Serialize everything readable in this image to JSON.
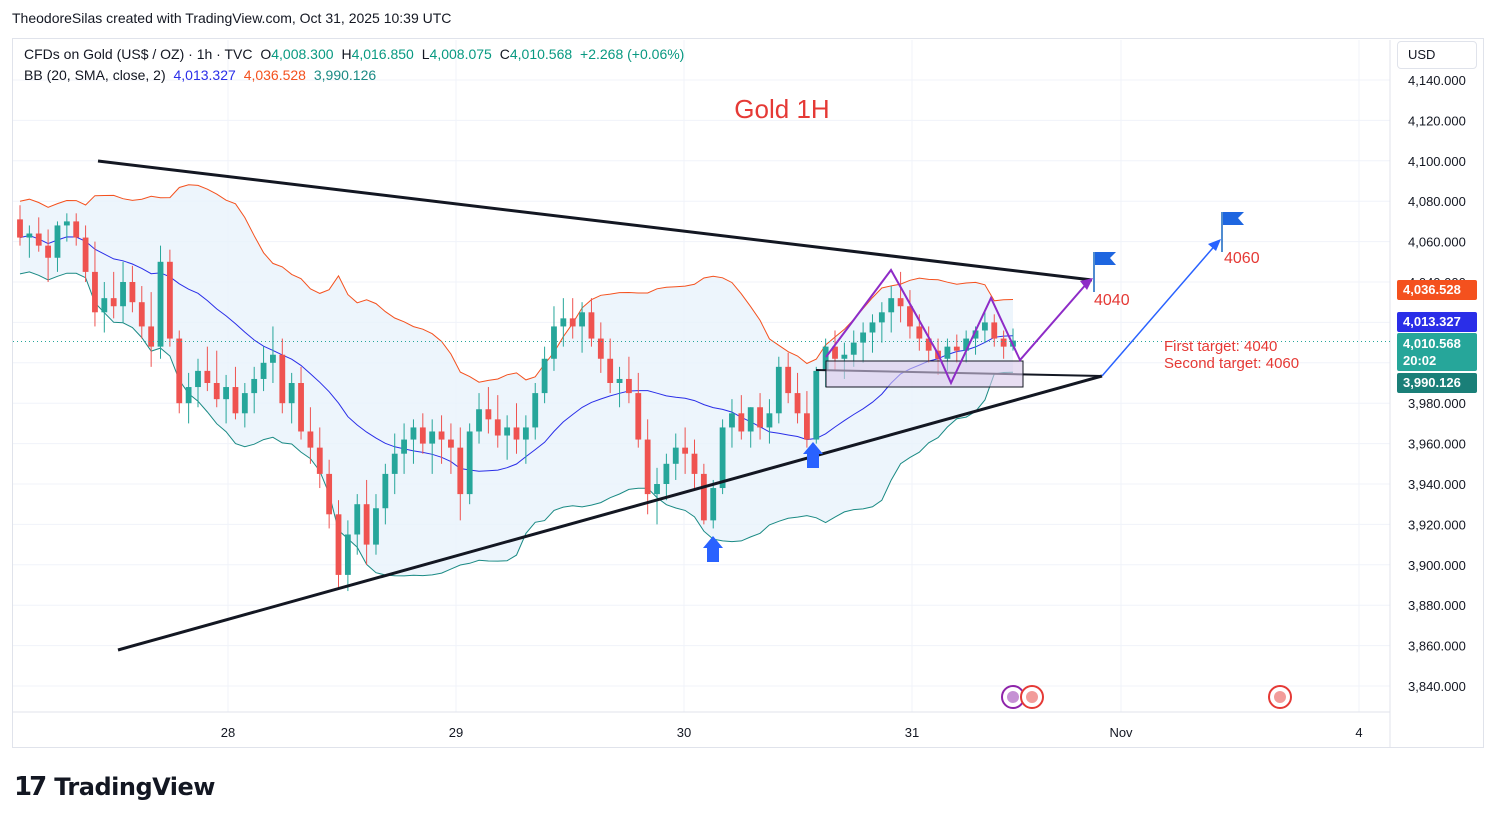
{
  "header": {
    "creator": "TheodoreSilas created with TradingView.com, Oct 31, 2025 10:39 UTC"
  },
  "symbol_line": {
    "name": "CFDs on Gold (US$ / OZ) · 1h · TVC",
    "o_label": "O",
    "o_value": "4,008.300",
    "h_label": "H",
    "h_value": "4,016.850",
    "l_label": "L",
    "l_value": "4,008.075",
    "c_label": "C",
    "c_value": "4,010.568",
    "change": "+2.268 (+0.06%)"
  },
  "bb_line": {
    "name": "BB (20, SMA, close, 2)",
    "basis": "4,013.327",
    "upper": "4,036.528",
    "lower": "3,990.126"
  },
  "currency_button": "USD",
  "branding": {
    "footer": "TradingView"
  },
  "price_tags": {
    "upper": "4,036.528",
    "basis": "4,013.327",
    "last_price": "4,010.568",
    "countdown": "20:02",
    "lower": "3,990.126"
  },
  "colors": {
    "up": "#26a69a",
    "down": "#ef5350",
    "bb_basis": "#2a2ee8",
    "bb_upper": "#f4511e",
    "bb_lower": "#1a8a84",
    "bb_fill": "#e8f2fb",
    "title": "#e53935",
    "annotation_red": "#e53935",
    "purple": "#8e2cc7",
    "blue_arrow": "#2962ff",
    "last_price_bg": "#26a69a"
  },
  "chart_data": {
    "type": "candlestick",
    "title": "Gold 1H",
    "timeframe": "1h",
    "ylim": [
      3830,
      4150
    ],
    "y_ticks": [
      3840,
      3860,
      3880,
      3900,
      3920,
      3940,
      3960,
      3980,
      4000,
      4020,
      4040,
      4060,
      4080,
      4100,
      4120,
      4140
    ],
    "y_tick_labels": [
      "3,840.000",
      "3,860.000",
      "3,880.000",
      "3,900.000",
      "3,920.000",
      "3,940.000",
      "3,960.000",
      "3,980.000",
      "4,000.000",
      "4,020.000",
      "4,040.000",
      "4,060.000",
      "4,080.000",
      "4,100.000",
      "4,120.000",
      "4,140.000"
    ],
    "x_tick_labels": [
      "28",
      "29",
      "30",
      "31",
      "Nov",
      "4"
    ],
    "annotations": {
      "target_1_label": "4040",
      "target_2_label": "4060",
      "targets_text_1": "First target: 4040",
      "targets_text_2": "Second target: 4060"
    },
    "bars_ohlc": [
      [
        4071,
        4078,
        4058,
        4062
      ],
      [
        4062,
        4068,
        4052,
        4064
      ],
      [
        4064,
        4072,
        4055,
        4058
      ],
      [
        4058,
        4066,
        4040,
        4052
      ],
      [
        4052,
        4070,
        4045,
        4068
      ],
      [
        4068,
        4074,
        4060,
        4070
      ],
      [
        4070,
        4074,
        4058,
        4062
      ],
      [
        4062,
        4068,
        4040,
        4045
      ],
      [
        4045,
        4060,
        4018,
        4025
      ],
      [
        4025,
        4040,
        4015,
        4032
      ],
      [
        4032,
        4045,
        4022,
        4028
      ],
      [
        4028,
        4050,
        4020,
        4040
      ],
      [
        4040,
        4048,
        4025,
        4030
      ],
      [
        4030,
        4038,
        4012,
        4018
      ],
      [
        4018,
        4035,
        3998,
        4008
      ],
      [
        4008,
        4058,
        4002,
        4050
      ],
      [
        4050,
        4056,
        4008,
        4012
      ],
      [
        4012,
        4016,
        3975,
        3980
      ],
      [
        3980,
        3995,
        3970,
        3988
      ],
      [
        3988,
        4002,
        3978,
        3996
      ],
      [
        3996,
        4008,
        3986,
        3990
      ],
      [
        3990,
        4006,
        3978,
        3982
      ],
      [
        3982,
        3994,
        3970,
        3988
      ],
      [
        3988,
        3998,
        3972,
        3975
      ],
      [
        3975,
        3990,
        3968,
        3985
      ],
      [
        3985,
        3998,
        3975,
        3992
      ],
      [
        3992,
        4008,
        3986,
        4000
      ],
      [
        4000,
        4018,
        3990,
        4004
      ],
      [
        4004,
        4012,
        3975,
        3980
      ],
      [
        3980,
        3995,
        3970,
        3990
      ],
      [
        3990,
        3998,
        3962,
        3966
      ],
      [
        3966,
        3978,
        3950,
        3958
      ],
      [
        3958,
        3968,
        3938,
        3945
      ],
      [
        3945,
        3952,
        3918,
        3925
      ],
      [
        3925,
        3932,
        3888,
        3895
      ],
      [
        3895,
        3922,
        3887,
        3915
      ],
      [
        3915,
        3935,
        3905,
        3930
      ],
      [
        3930,
        3942,
        3900,
        3910
      ],
      [
        3910,
        3935,
        3905,
        3928
      ],
      [
        3928,
        3950,
        3920,
        3945
      ],
      [
        3945,
        3965,
        3935,
        3955
      ],
      [
        3955,
        3970,
        3945,
        3962
      ],
      [
        3962,
        3972,
        3950,
        3968
      ],
      [
        3968,
        3975,
        3955,
        3960
      ],
      [
        3960,
        3972,
        3945,
        3966
      ],
      [
        3966,
        3974,
        3950,
        3962
      ],
      [
        3962,
        3970,
        3945,
        3958
      ],
      [
        3958,
        3968,
        3922,
        3935
      ],
      [
        3935,
        3970,
        3930,
        3966
      ],
      [
        3966,
        3985,
        3960,
        3977
      ],
      [
        3977,
        3988,
        3965,
        3972
      ],
      [
        3972,
        3984,
        3958,
        3964
      ],
      [
        3964,
        3974,
        3952,
        3968
      ],
      [
        3968,
        3980,
        3955,
        3962
      ],
      [
        3962,
        3974,
        3950,
        3968
      ],
      [
        3968,
        3990,
        3962,
        3985
      ],
      [
        3985,
        4008,
        3980,
        4002
      ],
      [
        4002,
        4028,
        3996,
        4018
      ],
      [
        4018,
        4032,
        4008,
        4022
      ],
      [
        4022,
        4032,
        4012,
        4018
      ],
      [
        4018,
        4030,
        4005,
        4025
      ],
      [
        4025,
        4032,
        4008,
        4012
      ],
      [
        4012,
        4020,
        3995,
        4002
      ],
      [
        4002,
        4012,
        3985,
        3990
      ],
      [
        3990,
        3998,
        3978,
        3992
      ],
      [
        3992,
        4003,
        3980,
        3985
      ],
      [
        3985,
        3995,
        3958,
        3962
      ],
      [
        3962,
        3972,
        3925,
        3935
      ],
      [
        3935,
        3948,
        3920,
        3940
      ],
      [
        3940,
        3955,
        3932,
        3950
      ],
      [
        3950,
        3965,
        3942,
        3958
      ],
      [
        3958,
        3968,
        3945,
        3955
      ],
      [
        3955,
        3962,
        3938,
        3945
      ],
      [
        3945,
        3950,
        3920,
        3922
      ],
      [
        3922,
        3942,
        3918,
        3938
      ],
      [
        3938,
        3972,
        3935,
        3968
      ],
      [
        3968,
        3982,
        3958,
        3975
      ],
      [
        3975,
        3984,
        3962,
        3966
      ],
      [
        3966,
        3978,
        3958,
        3978
      ],
      [
        3978,
        3985,
        3962,
        3968
      ],
      [
        3968,
        3982,
        3960,
        3975
      ],
      [
        3975,
        4003,
        3970,
        3998
      ],
      [
        3998,
        4005,
        3980,
        3985
      ],
      [
        3985,
        3995,
        3970,
        3975
      ],
      [
        3975,
        3986,
        3958,
        3962
      ],
      [
        3962,
        3998,
        3960,
        3996
      ],
      [
        3996,
        4012,
        3988,
        4008
      ],
      [
        4008,
        4016,
        3996,
        4002
      ],
      [
        4002,
        4010,
        3992,
        4004
      ],
      [
        4004,
        4016,
        3998,
        4010
      ],
      [
        4010,
        4020,
        4000,
        4015
      ],
      [
        4015,
        4024,
        4005,
        4020
      ],
      [
        4020,
        4030,
        4010,
        4025
      ],
      [
        4025,
        4038,
        4015,
        4032
      ],
      [
        4032,
        4045,
        4020,
        4028
      ],
      [
        4028,
        4036,
        4012,
        4018
      ],
      [
        4018,
        4024,
        4006,
        4012
      ],
      [
        4012,
        4018,
        4000,
        4006
      ],
      [
        4006,
        4012,
        3994,
        4002
      ],
      [
        4002,
        4012,
        3996,
        4008
      ],
      [
        4008,
        4014,
        4000,
        4006
      ],
      [
        4006,
        4016,
        4000,
        4012
      ],
      [
        4012,
        4018,
        4004,
        4016
      ],
      [
        4016,
        4025,
        4010,
        4020
      ],
      [
        4020,
        4024,
        4008,
        4012
      ],
      [
        4012,
        4016,
        4002,
        4008
      ],
      [
        4008,
        4017,
        4006,
        4011
      ]
    ],
    "bollinger_bands": {
      "basis_color": "#2a2ee8",
      "upper_color": "#f4511e",
      "lower_color": "#1a8a84"
    }
  }
}
